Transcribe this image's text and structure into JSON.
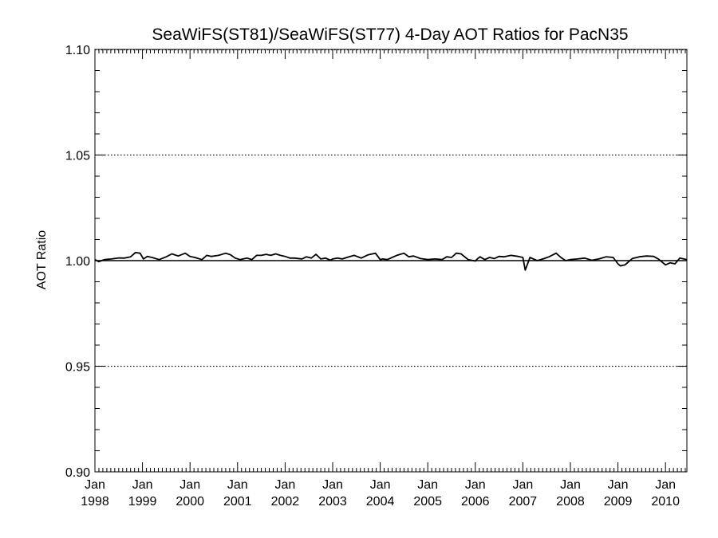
{
  "chart_data": {
    "type": "line",
    "title": "SeaWiFS(ST81)/SeaWiFS(ST77) 4-Day AOT Ratios for PacN35",
    "xlabel": "",
    "ylabel": "AOT Ratio",
    "ylim": [
      0.9,
      1.1
    ],
    "y_ticks": [
      "0.90",
      "0.95",
      "1.00",
      "1.05",
      "1.10"
    ],
    "y_tick_values": [
      0.9,
      0.95,
      1.0,
      1.05,
      1.1
    ],
    "xlim": [
      1998.0,
      2010.45
    ],
    "x_ticks": [
      {
        "month": "Jan",
        "year": "1998",
        "value": 1998
      },
      {
        "month": "Jan",
        "year": "1999",
        "value": 1999
      },
      {
        "month": "Jan",
        "year": "2000",
        "value": 2000
      },
      {
        "month": "Jan",
        "year": "2001",
        "value": 2001
      },
      {
        "month": "Jan",
        "year": "2002",
        "value": 2002
      },
      {
        "month": "Jan",
        "year": "2003",
        "value": 2003
      },
      {
        "month": "Jan",
        "year": "2004",
        "value": 2004
      },
      {
        "month": "Jan",
        "year": "2005",
        "value": 2005
      },
      {
        "month": "Jan",
        "year": "2006",
        "value": 2006
      },
      {
        "month": "Jan",
        "year": "2007",
        "value": 2007
      },
      {
        "month": "Jan",
        "year": "2008",
        "value": 2008
      },
      {
        "month": "Jan",
        "year": "2009",
        "value": 2009
      },
      {
        "month": "Jan",
        "year": "2010",
        "value": 2010
      }
    ],
    "dotted_gridlines": [
      0.95,
      1.05
    ],
    "reference_line": 1.0,
    "line_color": "#000000",
    "series": [
      {
        "x": [
          1998.0,
          1998.08,
          1998.2,
          1998.35,
          1998.5,
          1998.62,
          1998.75,
          1998.85,
          1998.95,
          1999.02,
          1999.1,
          1999.2,
          1999.35,
          1999.5,
          1999.62,
          1999.75,
          1999.9,
          2000.0,
          2000.1,
          2000.25,
          2000.35,
          2000.45,
          2000.6,
          2000.75,
          2000.85,
          2000.95,
          2001.05,
          2001.2,
          2001.3,
          2001.4,
          2001.5,
          2001.6,
          2001.7,
          2001.8,
          2001.9,
          2002.0,
          2002.1,
          2002.2,
          2002.35,
          2002.45,
          2002.55,
          2002.65,
          2002.75,
          2002.85,
          2002.95,
          2003.0,
          2003.1,
          2003.2,
          2003.3,
          2003.45,
          2003.6,
          2003.75,
          2003.9,
          2004.0,
          2004.05,
          2004.15,
          2004.25,
          2004.35,
          2004.5,
          2004.6,
          2004.7,
          2004.85,
          2005.0,
          2005.15,
          2005.3,
          2005.4,
          2005.5,
          2005.6,
          2005.7,
          2005.85,
          2006.0,
          2006.05,
          2006.1,
          2006.2,
          2006.3,
          2006.4,
          2006.5,
          2006.6,
          2006.75,
          2006.9,
          2007.0,
          2007.05,
          2007.15,
          2007.3,
          2007.45,
          2007.55,
          2007.7,
          2007.8,
          2007.9,
          2008.0,
          2008.15,
          2008.3,
          2008.45,
          2008.6,
          2008.75,
          2008.9,
          2009.0,
          2009.05,
          2009.15,
          2009.3,
          2009.45,
          2009.6,
          2009.75,
          2009.85,
          2010.0,
          2010.1,
          2010.2,
          2010.3,
          2010.35,
          2010.45
        ],
        "y": [
          1.0005,
          0.9995,
          1.0005,
          1.0008,
          1.0013,
          1.0012,
          1.0018,
          1.0038,
          1.0035,
          1.0008,
          1.002,
          1.0015,
          1.0005,
          1.0018,
          1.0032,
          1.0022,
          1.0035,
          1.002,
          1.0015,
          1.0005,
          1.0025,
          1.002,
          1.0025,
          1.0035,
          1.0028,
          1.0012,
          1.0005,
          1.0012,
          1.0005,
          1.0025,
          1.0025,
          1.003,
          1.0025,
          1.0032,
          1.0025,
          1.002,
          1.0012,
          1.0012,
          1.0008,
          1.0018,
          1.0012,
          1.003,
          1.0008,
          1.0012,
          1.0002,
          1.0008,
          1.0012,
          1.0008,
          1.0015,
          1.0025,
          1.0012,
          1.0028,
          1.0035,
          1.0005,
          1.0008,
          1.0005,
          1.0015,
          1.0025,
          1.0035,
          1.0018,
          1.0022,
          1.001,
          1.0005,
          1.0008,
          1.0005,
          1.0018,
          1.0015,
          1.0035,
          1.0032,
          1.0005,
          0.9998,
          1.001,
          1.0018,
          1.0005,
          1.0015,
          1.001,
          1.002,
          1.0018,
          1.0025,
          1.002,
          1.0015,
          0.9955,
          1.0015,
          1.0,
          1.001,
          1.0018,
          1.0035,
          1.0015,
          1.0,
          1.0005,
          1.0008,
          1.0012,
          1.0002,
          1.0008,
          1.0018,
          1.0015,
          0.9985,
          0.9975,
          0.998,
          1.001,
          1.0018,
          1.0022,
          1.002,
          1.0008,
          0.998,
          0.999,
          0.9985,
          1.0012,
          1.001,
          1.0005
        ]
      }
    ]
  }
}
